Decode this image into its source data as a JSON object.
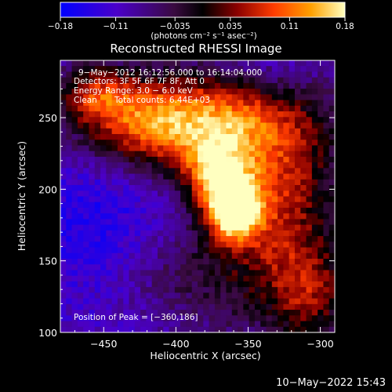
{
  "chart_data": {
    "type": "heatmap",
    "title": "Reconstructed RHESSI Image",
    "xlabel": "Heliocentric X (arcsec)",
    "ylabel": "Heliocentric Y (arcsec)",
    "xlim": [
      -480,
      -290
    ],
    "ylim": [
      100,
      290
    ],
    "x_ticks": [
      {
        "value": -450,
        "label": "−450"
      },
      {
        "value": -400,
        "label": "−400"
      },
      {
        "value": -350,
        "label": "−350"
      },
      {
        "value": -300,
        "label": "−300"
      }
    ],
    "y_ticks": [
      {
        "value": 100,
        "label": "100"
      },
      {
        "value": 150,
        "label": "150"
      },
      {
        "value": 200,
        "label": "200"
      },
      {
        "value": 250,
        "label": "250"
      }
    ],
    "colorbar": {
      "min": -0.18,
      "max": 0.18,
      "ticks": [
        {
          "value": -0.18,
          "label": "−0.18"
        },
        {
          "value": -0.11,
          "label": "−0.11"
        },
        {
          "value": -0.035,
          "label": "−0.035"
        },
        {
          "value": 0.035,
          "label": "0.035"
        },
        {
          "value": 0.11,
          "label": "0.11"
        },
        {
          "value": 0.18,
          "label": "0.18"
        }
      ],
      "unit_label": "(photons cm⁻² s⁻¹ asec⁻²)",
      "colormap": [
        "#0000ff",
        "#4b00c8",
        "#3a0a40",
        "#000000",
        "#8a0000",
        "#ff3c00",
        "#ffa000",
        "#ffffc0"
      ]
    },
    "annotations": {
      "time_range": "9−May−2012 16:12:56.000 to 16:14:04.000",
      "detectors": "Detectors: 3F 5F 6F 7F 8F, Att 0",
      "energy_range": "Energy Range: 3.0 − 6.0 keV",
      "method": "Clean",
      "total_counts": "Total counts: 6.44E+03",
      "peak_position": "Position of Peak = [−360,186]"
    },
    "peak": {
      "x": -360,
      "y": 186
    },
    "grid": false
  },
  "footer": {
    "timestamp": "10−May−2022 15:43"
  }
}
